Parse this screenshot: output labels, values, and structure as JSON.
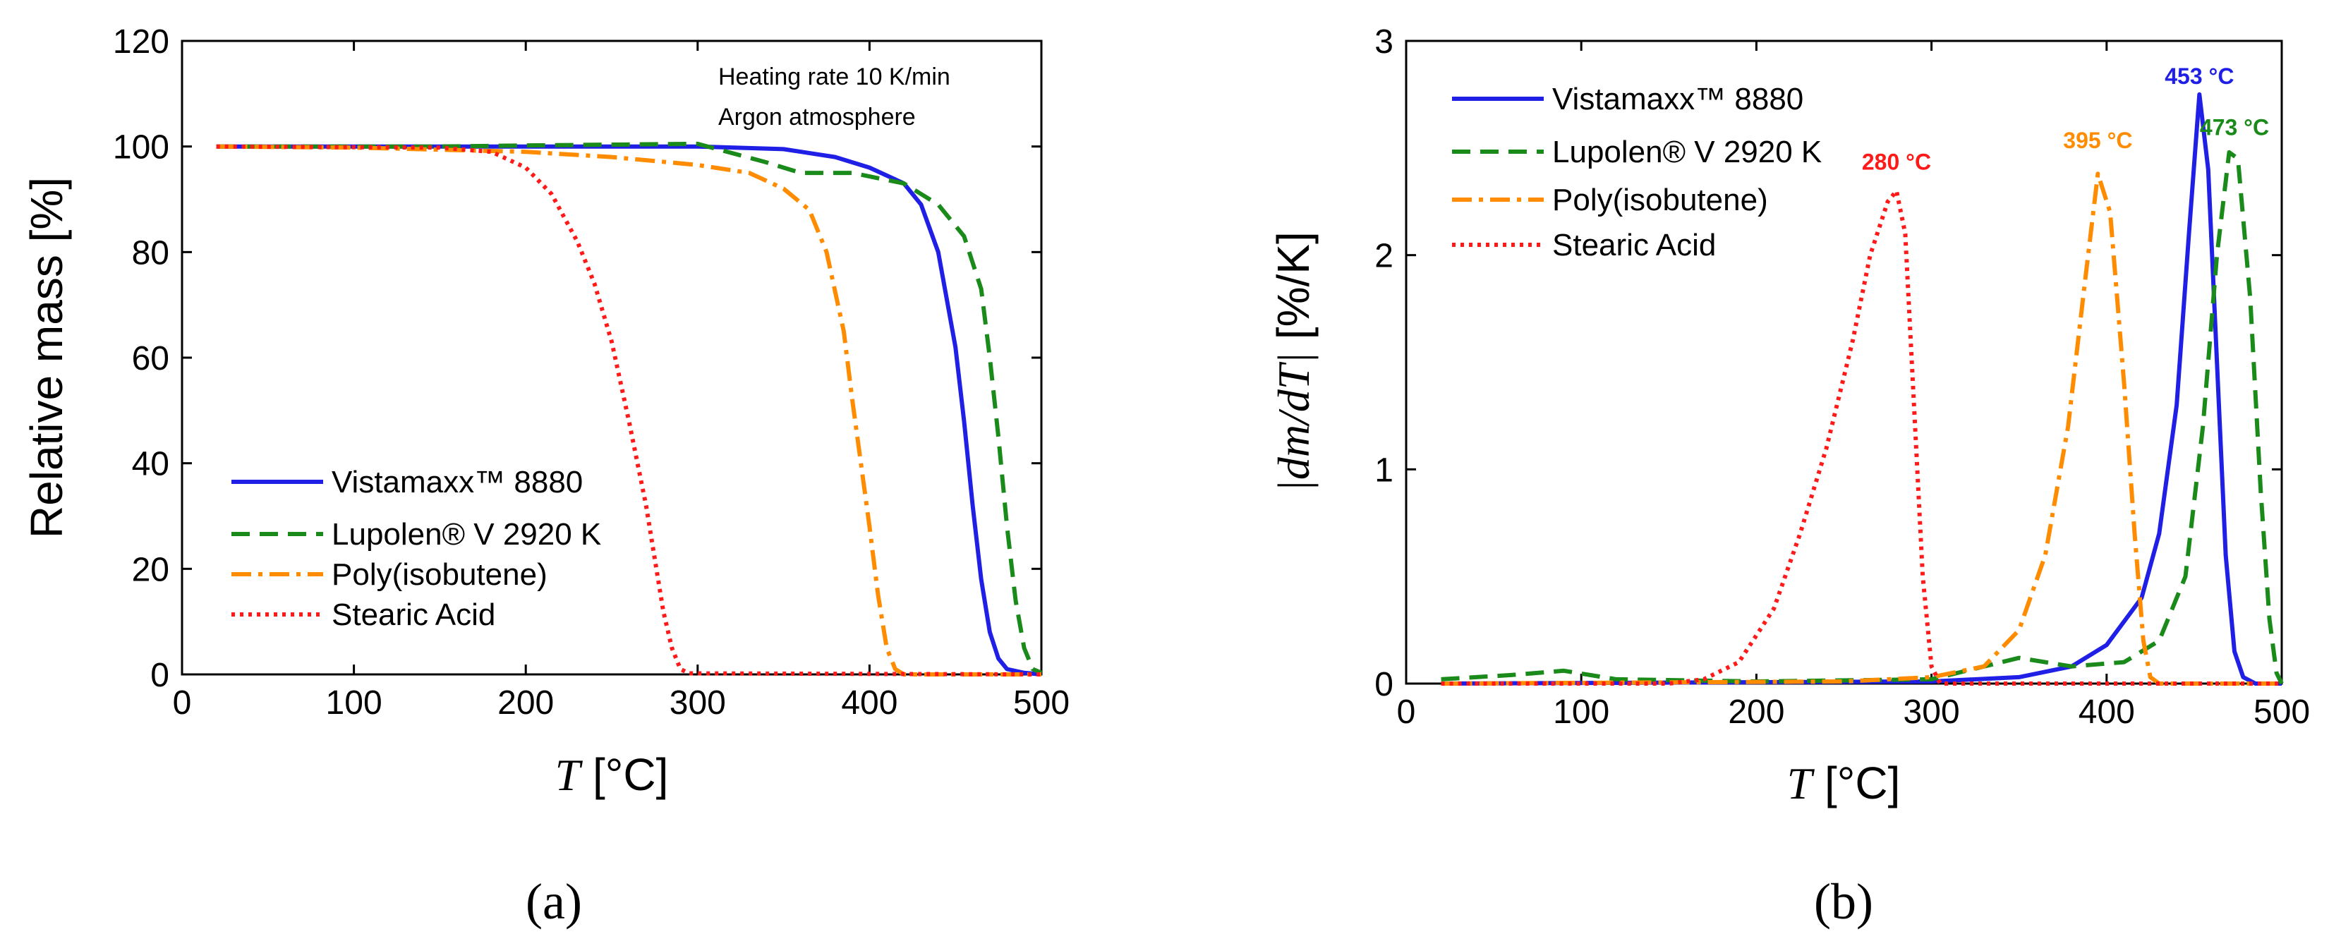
{
  "chart_data": [
    {
      "panel_label": "(a)",
      "type": "line",
      "ylabel": "Relative mass [%]",
      "xlabel": "T [°C]",
      "xlabel_var": "T",
      "xlabel_unit": " [°C]",
      "xlim": [
        0,
        500
      ],
      "ylim": [
        0,
        120
      ],
      "xticks": [
        0,
        100,
        200,
        300,
        400,
        500
      ],
      "yticks": [
        0,
        20,
        40,
        60,
        80,
        100,
        120
      ],
      "annotations": [
        "Heating rate 10 K/min",
        "Argon atmosphere"
      ],
      "series": [
        {
          "name": "Vistamaxx™ 8880",
          "color": "#1f1fe6",
          "dash": "solid",
          "points": [
            [
              20,
              100
            ],
            [
              150,
              100
            ],
            [
              300,
              100
            ],
            [
              350,
              99.5
            ],
            [
              380,
              98
            ],
            [
              400,
              96
            ],
            [
              420,
              93
            ],
            [
              430,
              89
            ],
            [
              440,
              80
            ],
            [
              450,
              62
            ],
            [
              455,
              48
            ],
            [
              460,
              32
            ],
            [
              465,
              18
            ],
            [
              470,
              8
            ],
            [
              475,
              3
            ],
            [
              480,
              1
            ],
            [
              490,
              0.3
            ],
            [
              500,
              0
            ]
          ]
        },
        {
          "name": "Lupolen® V 2920 K",
          "color": "#1a8a1a",
          "dash": "dashed",
          "points": [
            [
              20,
              100
            ],
            [
              150,
              100
            ],
            [
              200,
              100.2
            ],
            [
              300,
              100.5
            ],
            [
              340,
              97
            ],
            [
              360,
              95
            ],
            [
              390,
              95
            ],
            [
              420,
              93
            ],
            [
              440,
              89
            ],
            [
              455,
              83
            ],
            [
              465,
              73
            ],
            [
              470,
              60
            ],
            [
              475,
              45
            ],
            [
              480,
              28
            ],
            [
              485,
              14
            ],
            [
              490,
              5
            ],
            [
              495,
              1
            ],
            [
              500,
              0.3
            ]
          ]
        },
        {
          "name": "Poly(isobutene)",
          "color": "#ff8c00",
          "dash": "dashdot",
          "points": [
            [
              20,
              100
            ],
            [
              100,
              99.8
            ],
            [
              200,
              99
            ],
            [
              250,
              98
            ],
            [
              300,
              96.5
            ],
            [
              330,
              95
            ],
            [
              350,
              92
            ],
            [
              365,
              88
            ],
            [
              375,
              80
            ],
            [
              385,
              65
            ],
            [
              390,
              52
            ],
            [
              395,
              40
            ],
            [
              400,
              28
            ],
            [
              405,
              15
            ],
            [
              410,
              5
            ],
            [
              415,
              1
            ],
            [
              420,
              0
            ],
            [
              500,
              0
            ]
          ]
        },
        {
          "name": "Stearic Acid",
          "color": "#ff1a1a",
          "dash": "dotted",
          "points": [
            [
              20,
              100
            ],
            [
              150,
              99.8
            ],
            [
              180,
              99
            ],
            [
              200,
              96
            ],
            [
              215,
              91
            ],
            [
              230,
              82
            ],
            [
              240,
              74
            ],
            [
              250,
              63
            ],
            [
              260,
              48
            ],
            [
              270,
              32
            ],
            [
              275,
              22
            ],
            [
              280,
              12
            ],
            [
              285,
              5
            ],
            [
              290,
              1
            ],
            [
              295,
              0.2
            ],
            [
              500,
              0
            ]
          ]
        }
      ],
      "legend_position": "bottom-left"
    },
    {
      "panel_label": "(b)",
      "type": "line",
      "ylabel": "|dm/dT| [%/K]",
      "ylabel_var": "|dm/dT|",
      "ylabel_unit": " [%/K]",
      "xlabel": "T [°C]",
      "xlabel_var": "T",
      "xlabel_unit": " [°C]",
      "xlim": [
        0,
        500
      ],
      "ylim": [
        0,
        3
      ],
      "xticks": [
        0,
        100,
        200,
        300,
        400,
        500
      ],
      "yticks": [
        0,
        1,
        2,
        3
      ],
      "peak_annotations": [
        {
          "text": "453 °C",
          "x": 453,
          "y": 2.78,
          "color": "#1f1fe6"
        },
        {
          "text": "473 °C",
          "x": 473,
          "y": 2.54,
          "color": "#1a8a1a"
        },
        {
          "text": "395 °C",
          "x": 395,
          "y": 2.48,
          "color": "#ff8c00"
        },
        {
          "text": "280 °C",
          "x": 280,
          "y": 2.38,
          "color": "#ff1a1a"
        }
      ],
      "series": [
        {
          "name": "Vistamaxx™ 8880",
          "color": "#1f1fe6",
          "dash": "solid",
          "points": [
            [
              20,
              0
            ],
            [
              300,
              0.01
            ],
            [
              350,
              0.03
            ],
            [
              380,
              0.08
            ],
            [
              400,
              0.18
            ],
            [
              420,
              0.4
            ],
            [
              430,
              0.7
            ],
            [
              440,
              1.3
            ],
            [
              447,
              2.1
            ],
            [
              453,
              2.75
            ],
            [
              458,
              2.4
            ],
            [
              463,
              1.5
            ],
            [
              468,
              0.6
            ],
            [
              473,
              0.15
            ],
            [
              478,
              0.03
            ],
            [
              485,
              0
            ],
            [
              500,
              0
            ]
          ]
        },
        {
          "name": "Lupolen® V 2920 K",
          "color": "#1a8a1a",
          "dash": "dashed",
          "points": [
            [
              20,
              0.02
            ],
            [
              60,
              0.04
            ],
            [
              90,
              0.06
            ],
            [
              120,
              0.02
            ],
            [
              200,
              0.01
            ],
            [
              300,
              0.02
            ],
            [
              350,
              0.12
            ],
            [
              380,
              0.08
            ],
            [
              410,
              0.1
            ],
            [
              430,
              0.2
            ],
            [
              445,
              0.5
            ],
            [
              455,
              1.2
            ],
            [
              463,
              2.0
            ],
            [
              470,
              2.48
            ],
            [
              475,
              2.45
            ],
            [
              482,
              1.8
            ],
            [
              488,
              0.9
            ],
            [
              493,
              0.3
            ],
            [
              497,
              0.05
            ],
            [
              500,
              0
            ]
          ]
        },
        {
          "name": "Poly(isobutene)",
          "color": "#ff8c00",
          "dash": "dashdot",
          "points": [
            [
              20,
              0
            ],
            [
              250,
              0.01
            ],
            [
              300,
              0.03
            ],
            [
              330,
              0.08
            ],
            [
              350,
              0.25
            ],
            [
              365,
              0.6
            ],
            [
              378,
              1.2
            ],
            [
              388,
              1.9
            ],
            [
              395,
              2.38
            ],
            [
              402,
              2.2
            ],
            [
              410,
              1.4
            ],
            [
              416,
              0.7
            ],
            [
              421,
              0.2
            ],
            [
              425,
              0.03
            ],
            [
              430,
              0
            ],
            [
              500,
              0
            ]
          ]
        },
        {
          "name": "Stearic Acid",
          "color": "#ff1a1a",
          "dash": "dotted",
          "points": [
            [
              20,
              0
            ],
            [
              150,
              0
            ],
            [
              170,
              0.02
            ],
            [
              190,
              0.1
            ],
            [
              210,
              0.35
            ],
            [
              225,
              0.7
            ],
            [
              240,
              1.1
            ],
            [
              255,
              1.6
            ],
            [
              265,
              2.0
            ],
            [
              275,
              2.25
            ],
            [
              280,
              2.3
            ],
            [
              285,
              2.1
            ],
            [
              290,
              1.3
            ],
            [
              295,
              0.5
            ],
            [
              300,
              0.08
            ],
            [
              305,
              0
            ],
            [
              500,
              0
            ]
          ]
        }
      ],
      "legend_position": "top-left"
    }
  ]
}
